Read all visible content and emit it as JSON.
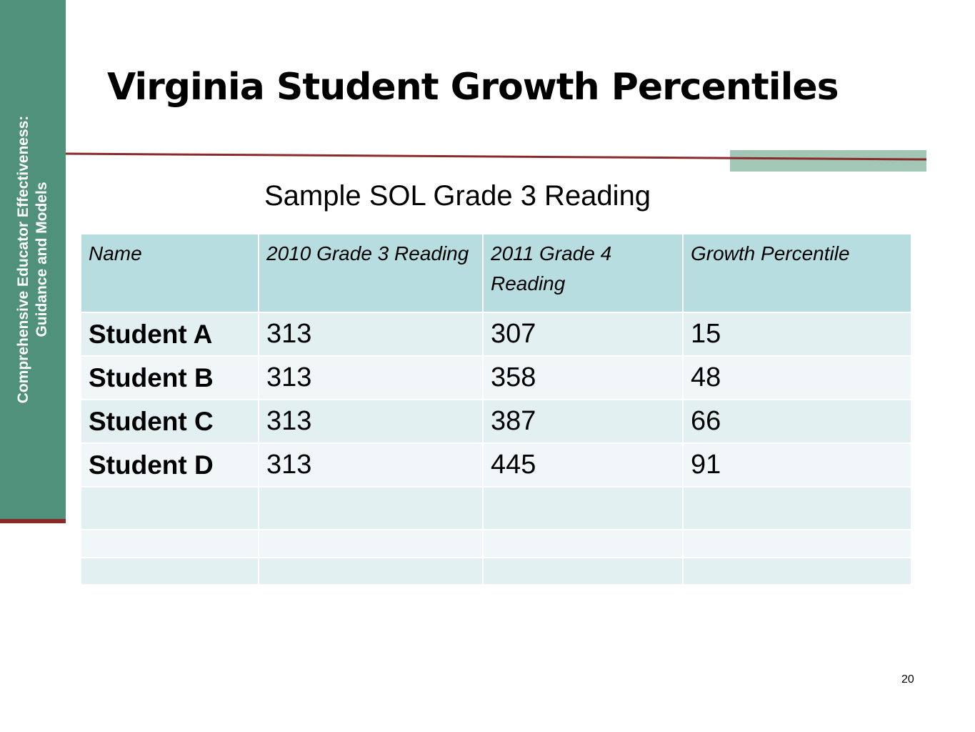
{
  "sidebar": {
    "line1": "Comprehensive Educator Effectiveness:",
    "line2": "Guidance and Models"
  },
  "title": "Virginia Student Growth Percentiles",
  "subtitle": "Sample SOL Grade 3 Reading",
  "table": {
    "headers": [
      "Name",
      "2010 Grade 3 Reading",
      "2011 Grade 4 Reading",
      "Growth Percentile"
    ],
    "rows": [
      [
        "Student A",
        "313",
        "307",
        "15"
      ],
      [
        "Student B",
        "313",
        "358",
        "48"
      ],
      [
        "Student C",
        "313",
        "387",
        "66"
      ],
      [
        "Student D",
        "313",
        "445",
        "91"
      ],
      [
        "",
        "",
        "",
        ""
      ],
      [
        "",
        "",
        "",
        ""
      ],
      [
        "",
        "",
        "",
        ""
      ]
    ]
  },
  "slide_number": "20",
  "colors": {
    "sidebar": "#4f917a",
    "rule": "#8b2a2a",
    "accent": "#a3c7b6",
    "header_fill": "#b8dde0",
    "row_odd": "#e2f0f2",
    "row_even": "#f1f7f9"
  }
}
